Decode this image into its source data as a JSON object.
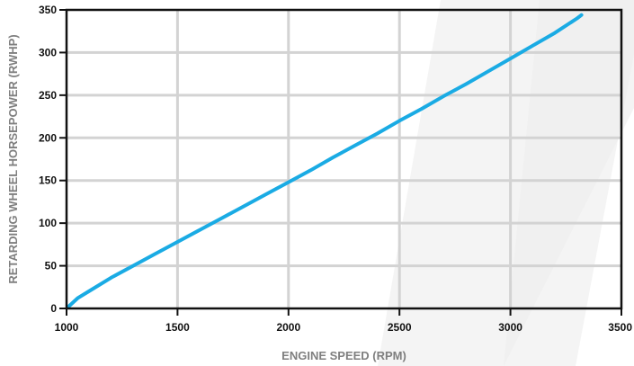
{
  "chart_data": {
    "type": "line",
    "title": "",
    "xlabel": "ENGINE SPEED (RPM)",
    "ylabel": "RETARDING WHEEL HORSEPOWER (RWHP)",
    "xlim": [
      1000,
      3500
    ],
    "ylim": [
      0,
      350
    ],
    "x_ticks": [
      1000,
      1500,
      2000,
      2500,
      3000,
      3500
    ],
    "y_ticks": [
      0,
      50,
      100,
      150,
      200,
      250,
      300,
      350
    ],
    "grid": true,
    "legend": "none",
    "series": [
      {
        "x": [
          1000,
          1050,
          1100,
          1200,
          1300,
          1400,
          1500,
          1600,
          1700,
          1800,
          1900,
          2000,
          2100,
          2200,
          2300,
          2400,
          2500,
          2600,
          2700,
          2800,
          2900,
          3000,
          3100,
          3200,
          3300,
          3320
        ],
        "y": [
          0,
          12,
          20,
          36,
          50,
          64,
          78,
          92,
          106,
          120,
          134,
          148,
          162,
          177,
          191,
          205,
          220,
          234,
          249,
          263,
          278,
          293,
          308,
          323,
          340,
          344
        ]
      }
    ],
    "colors": {
      "line": "#1aabe4",
      "grid": "#d3d3d3",
      "axis": "#111111",
      "tick_text": "#111111",
      "axis_title": "#7f7f7f"
    }
  }
}
